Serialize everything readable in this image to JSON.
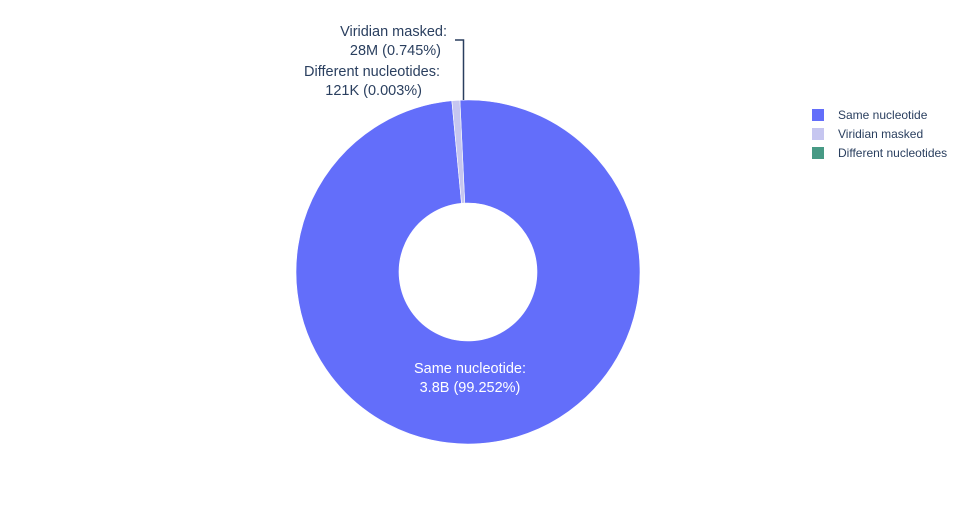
{
  "chart_data": {
    "type": "pie",
    "hole": true,
    "slices": [
      {
        "label": "Same nucleotide",
        "value": 3800000000,
        "value_text": "3.8B",
        "percent_text": "(99.252%)",
        "percent": 99.252,
        "color": "#636efa"
      },
      {
        "label": "Viridian masked",
        "value": 28000000,
        "value_text": "28M",
        "percent_text": "(0.745%)",
        "percent": 0.745,
        "color": "#c6c6f0"
      },
      {
        "label": "Different nucleotides",
        "value": 121000,
        "value_text": "121K",
        "percent_text": "(0.003%)",
        "percent": 0.003,
        "color": "#479a85"
      }
    ],
    "legend": {
      "placement": "top-right",
      "items": [
        {
          "label": "Same nucleotide",
          "color": "#636efa"
        },
        {
          "label": "Viridian masked",
          "color": "#c6c6f0"
        },
        {
          "label": "Different nucleotides",
          "color": "#479a85"
        }
      ]
    }
  }
}
